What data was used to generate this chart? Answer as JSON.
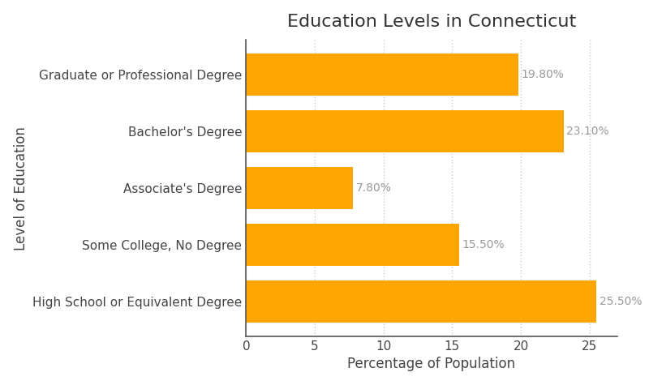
{
  "title": "Education Levels in Connecticut",
  "categories": [
    "Graduate or Professional Degree",
    "Bachelor's Degree",
    "Associate's Degree",
    "Some College, No Degree",
    "High School or Equivalent Degree"
  ],
  "values": [
    19.8,
    23.1,
    7.8,
    15.5,
    25.5
  ],
  "bar_color": "#FFA500",
  "xlabel": "Percentage of Population",
  "ylabel": "Level of Education",
  "xlim": [
    0,
    27
  ],
  "title_fontsize": 16,
  "label_fontsize": 12,
  "tick_fontsize": 11,
  "annotation_fontsize": 10,
  "annotation_color": "#999999",
  "grid_color": "#cccccc",
  "background_color": "#ffffff",
  "spine_color": "#555555",
  "bar_height": 0.75
}
